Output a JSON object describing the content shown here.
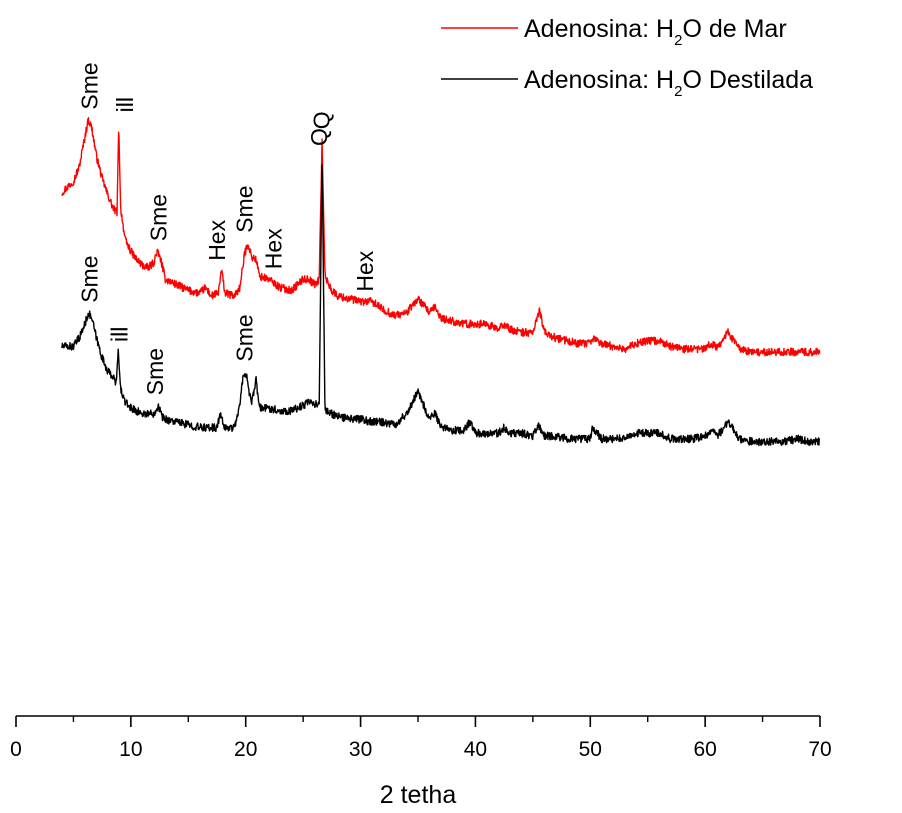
{
  "chart_data": {
    "type": "line",
    "xlabel": "2 tetha",
    "ylabel": "",
    "xlim": [
      0,
      70
    ],
    "x_ticks": [
      0,
      10,
      20,
      30,
      40,
      50,
      60,
      70
    ],
    "y_axis_visible": false,
    "grid": false,
    "legend_position": "top-right",
    "series": [
      {
        "name": "Adenosina: H2O de Mar",
        "color": "#ff0000",
        "points": [
          [
            4.0,
            67
          ],
          [
            4.5,
            69
          ],
          [
            5.0,
            71
          ],
          [
            5.5,
            76
          ],
          [
            6.0,
            87
          ],
          [
            6.3,
            93
          ],
          [
            6.6,
            90
          ],
          [
            7.0,
            80
          ],
          [
            7.5,
            72
          ],
          [
            8.0,
            66
          ],
          [
            8.5,
            61
          ],
          [
            8.8,
            60
          ],
          [
            8.95,
            92
          ],
          [
            9.1,
            62
          ],
          [
            9.5,
            50
          ],
          [
            10.0,
            46
          ],
          [
            10.5,
            43
          ],
          [
            11.0,
            41
          ],
          [
            11.5,
            40
          ],
          [
            12.0,
            42
          ],
          [
            12.3,
            46
          ],
          [
            12.6,
            43
          ],
          [
            13.0,
            36
          ],
          [
            14.0,
            34
          ],
          [
            15.0,
            32
          ],
          [
            16.0,
            31
          ],
          [
            16.5,
            33
          ],
          [
            17.0,
            30
          ],
          [
            17.6,
            31
          ],
          [
            17.9,
            39
          ],
          [
            18.2,
            31
          ],
          [
            19.0,
            30
          ],
          [
            19.5,
            33
          ],
          [
            19.9,
            45
          ],
          [
            20.2,
            49
          ],
          [
            20.5,
            44
          ],
          [
            20.9,
            43
          ],
          [
            21.2,
            37
          ],
          [
            22.0,
            36
          ],
          [
            23.0,
            33
          ],
          [
            24.0,
            32
          ],
          [
            25.0,
            36
          ],
          [
            25.5,
            36
          ],
          [
            26.0,
            34
          ],
          [
            26.4,
            36
          ],
          [
            26.65,
            86
          ],
          [
            26.9,
            37
          ],
          [
            27.5,
            32
          ],
          [
            28.0,
            30
          ],
          [
            29.0,
            29
          ],
          [
            30.0,
            28
          ],
          [
            31.0,
            28
          ],
          [
            32.0,
            25
          ],
          [
            33.0,
            23
          ],
          [
            34.0,
            24
          ],
          [
            35.0,
            29
          ],
          [
            35.4,
            27
          ],
          [
            36.0,
            24
          ],
          [
            36.5,
            26
          ],
          [
            37.0,
            22
          ],
          [
            38.0,
            21
          ],
          [
            39.0,
            20
          ],
          [
            40.0,
            20
          ],
          [
            41.0,
            20
          ],
          [
            42.0,
            18
          ],
          [
            42.5,
            20
          ],
          [
            43.0,
            18
          ],
          [
            44.0,
            17
          ],
          [
            45.0,
            17
          ],
          [
            45.6,
            25
          ],
          [
            46.0,
            17
          ],
          [
            47.0,
            15
          ],
          [
            48.0,
            14
          ],
          [
            49.0,
            13
          ],
          [
            50.0,
            13
          ],
          [
            50.3,
            15
          ],
          [
            51.0,
            13
          ],
          [
            52.0,
            12
          ],
          [
            53.0,
            11
          ],
          [
            54.0,
            13
          ],
          [
            55.0,
            14
          ],
          [
            56.0,
            14
          ],
          [
            57.0,
            12
          ],
          [
            58.0,
            11
          ],
          [
            59.0,
            11
          ],
          [
            60.0,
            11
          ],
          [
            60.5,
            13
          ],
          [
            61.0,
            12
          ],
          [
            61.5,
            14
          ],
          [
            62.0,
            17
          ],
          [
            62.5,
            14
          ],
          [
            63.0,
            11
          ],
          [
            64.0,
            10
          ],
          [
            65.0,
            10
          ],
          [
            66.0,
            10
          ],
          [
            67.0,
            10
          ],
          [
            68.0,
            10
          ],
          [
            69.0,
            10
          ],
          [
            70.0,
            10
          ]
        ]
      },
      {
        "name": "Adenosina: H2O Destilada",
        "color": "#000000",
        "points": [
          [
            4.0,
            12
          ],
          [
            4.5,
            12
          ],
          [
            5.0,
            12
          ],
          [
            5.5,
            15
          ],
          [
            6.0,
            20
          ],
          [
            6.3,
            24
          ],
          [
            6.6,
            22
          ],
          [
            7.0,
            15
          ],
          [
            7.5,
            8
          ],
          [
            8.0,
            3
          ],
          [
            8.5,
            1
          ],
          [
            8.7,
            -2
          ],
          [
            8.9,
            10
          ],
          [
            9.1,
            -3
          ],
          [
            9.5,
            -8
          ],
          [
            10.0,
            -10
          ],
          [
            11.0,
            -12
          ],
          [
            12.0,
            -12
          ],
          [
            12.4,
            -9
          ],
          [
            12.7,
            -13
          ],
          [
            13.0,
            -14
          ],
          [
            14.0,
            -15
          ],
          [
            15.0,
            -16
          ],
          [
            16.0,
            -17
          ],
          [
            17.0,
            -17
          ],
          [
            17.5,
            -17
          ],
          [
            17.8,
            -12
          ],
          [
            18.1,
            -17
          ],
          [
            19.0,
            -17
          ],
          [
            19.5,
            -9
          ],
          [
            19.8,
            3
          ],
          [
            20.1,
            1
          ],
          [
            20.5,
            -9
          ],
          [
            20.9,
            0
          ],
          [
            21.2,
            -10
          ],
          [
            22.0,
            -10
          ],
          [
            23.0,
            -11
          ],
          [
            24.0,
            -11
          ],
          [
            25.0,
            -9
          ],
          [
            25.5,
            -8
          ],
          [
            26.0,
            -9
          ],
          [
            26.4,
            -8
          ],
          [
            26.65,
            80
          ],
          [
            26.9,
            -11
          ],
          [
            27.5,
            -12
          ],
          [
            28.0,
            -13
          ],
          [
            29.0,
            -14
          ],
          [
            30.0,
            -14
          ],
          [
            31.0,
            -15
          ],
          [
            32.0,
            -15
          ],
          [
            33.0,
            -16
          ],
          [
            34.0,
            -12
          ],
          [
            35.0,
            -4
          ],
          [
            35.4,
            -8
          ],
          [
            36.0,
            -14
          ],
          [
            36.5,
            -12
          ],
          [
            37.0,
            -17
          ],
          [
            38.0,
            -18
          ],
          [
            39.0,
            -18
          ],
          [
            39.5,
            -15
          ],
          [
            40.0,
            -19
          ],
          [
            41.0,
            -19
          ],
          [
            42.0,
            -19
          ],
          [
            42.5,
            -17
          ],
          [
            43.0,
            -19
          ],
          [
            44.0,
            -19
          ],
          [
            45.0,
            -20
          ],
          [
            45.5,
            -16
          ],
          [
            46.0,
            -20
          ],
          [
            47.0,
            -20
          ],
          [
            48.0,
            -21
          ],
          [
            49.0,
            -21
          ],
          [
            50.0,
            -21
          ],
          [
            50.2,
            -17
          ],
          [
            51.0,
            -21
          ],
          [
            52.0,
            -21
          ],
          [
            53.0,
            -21
          ],
          [
            54.0,
            -19
          ],
          [
            55.0,
            -19
          ],
          [
            56.0,
            -19
          ],
          [
            57.0,
            -21
          ],
          [
            58.0,
            -21
          ],
          [
            59.0,
            -21
          ],
          [
            60.0,
            -20
          ],
          [
            60.5,
            -18
          ],
          [
            61.0,
            -20
          ],
          [
            61.5,
            -18
          ],
          [
            62.0,
            -15
          ],
          [
            62.5,
            -18
          ],
          [
            63.0,
            -21
          ],
          [
            64.0,
            -22
          ],
          [
            65.0,
            -22
          ],
          [
            66.0,
            -22
          ],
          [
            67.0,
            -22
          ],
          [
            68.0,
            -21
          ],
          [
            69.0,
            -22
          ],
          [
            70.0,
            -22
          ]
        ]
      }
    ],
    "annotations": [
      {
        "text": "Sme",
        "x": 6.4,
        "series": 0
      },
      {
        "text": "ill",
        "x": 9.5,
        "series": 0
      },
      {
        "text": "Sme",
        "x": 12.4,
        "series": 0
      },
      {
        "text": "Hex",
        "x": 17.5,
        "series": 0
      },
      {
        "text": "Sme",
        "x": 19.9,
        "series": 0
      },
      {
        "text": "Hex",
        "x": 22.4,
        "series": 0
      },
      {
        "text": "Q",
        "x": 26.6,
        "series": 0
      },
      {
        "text": "Hex",
        "x": 30.4,
        "series": 0
      },
      {
        "text": "Sme",
        "x": 6.4,
        "series": 1
      },
      {
        "text": "ill",
        "x": 9.0,
        "series": 1
      },
      {
        "text": "Sme",
        "x": 12.1,
        "series": 1
      },
      {
        "text": "Sme",
        "x": 19.9,
        "series": 1
      },
      {
        "text": "Q",
        "x": 26.4,
        "series": 1
      }
    ]
  },
  "legend": {
    "items": [
      {
        "prefix": "Adenosina: H",
        "sub": "2",
        "suffix": "O de Mar",
        "color": "#ff0000"
      },
      {
        "prefix": "Adenosina: H",
        "sub": "2",
        "suffix": "O Destilada",
        "color": "#000000"
      }
    ]
  }
}
